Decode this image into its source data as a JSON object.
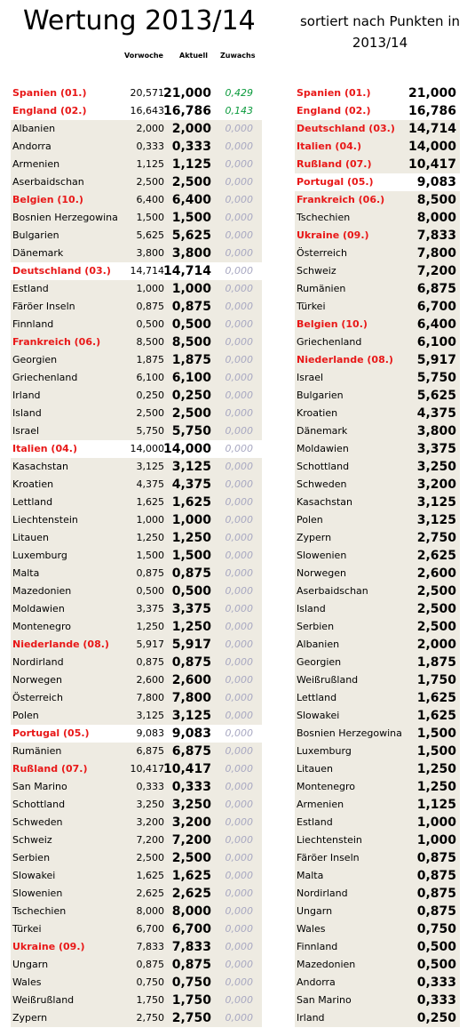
{
  "title": "Wertung 2013/14",
  "subtitle": "sortiert nach Punkten in\n2013/14",
  "headers": {
    "vorwoche": "Vorwoche",
    "aktuell": "Aktuell",
    "zuwachs": "Zuwachs"
  },
  "left_rows": [
    {
      "name": "Spanien (01.)",
      "prev": "20,571",
      "cur": "21,000",
      "gain": "0,429",
      "hl": true,
      "white": true,
      "pos": true
    },
    {
      "name": "England (02.)",
      "prev": "16,643",
      "cur": "16,786",
      "gain": "0,143",
      "hl": true,
      "white": true,
      "pos": true
    },
    {
      "name": "Albanien",
      "prev": "2,000",
      "cur": "2,000",
      "gain": "0,000"
    },
    {
      "name": "Andorra",
      "prev": "0,333",
      "cur": "0,333",
      "gain": "0,000"
    },
    {
      "name": "Armenien",
      "prev": "1,125",
      "cur": "1,125",
      "gain": "0,000"
    },
    {
      "name": "Aserbaidschan",
      "prev": "2,500",
      "cur": "2,500",
      "gain": "0,000"
    },
    {
      "name": "Belgien (10.)",
      "prev": "6,400",
      "cur": "6,400",
      "gain": "0,000",
      "hl": true
    },
    {
      "name": "Bosnien Herzegowina",
      "prev": "1,500",
      "cur": "1,500",
      "gain": "0,000"
    },
    {
      "name": "Bulgarien",
      "prev": "5,625",
      "cur": "5,625",
      "gain": "0,000"
    },
    {
      "name": "Dänemark",
      "prev": "3,800",
      "cur": "3,800",
      "gain": "0,000"
    },
    {
      "name": "Deutschland (03.)",
      "prev": "14,714",
      "cur": "14,714",
      "gain": "0,000",
      "hl": true,
      "white": true
    },
    {
      "name": "Estland",
      "prev": "1,000",
      "cur": "1,000",
      "gain": "0,000"
    },
    {
      "name": "Färöer Inseln",
      "prev": "0,875",
      "cur": "0,875",
      "gain": "0,000"
    },
    {
      "name": "Finnland",
      "prev": "0,500",
      "cur": "0,500",
      "gain": "0,000"
    },
    {
      "name": "Frankreich (06.)",
      "prev": "8,500",
      "cur": "8,500",
      "gain": "0,000",
      "hl": true
    },
    {
      "name": "Georgien",
      "prev": "1,875",
      "cur": "1,875",
      "gain": "0,000"
    },
    {
      "name": "Griechenland",
      "prev": "6,100",
      "cur": "6,100",
      "gain": "0,000"
    },
    {
      "name": "Irland",
      "prev": "0,250",
      "cur": "0,250",
      "gain": "0,000"
    },
    {
      "name": "Island",
      "prev": "2,500",
      "cur": "2,500",
      "gain": "0,000"
    },
    {
      "name": "Israel",
      "prev": "5,750",
      "cur": "5,750",
      "gain": "0,000"
    },
    {
      "name": "Italien (04.)",
      "prev": "14,000",
      "cur": "14,000",
      "gain": "0,000",
      "hl": true,
      "white": true
    },
    {
      "name": "Kasachstan",
      "prev": "3,125",
      "cur": "3,125",
      "gain": "0,000"
    },
    {
      "name": "Kroatien",
      "prev": "4,375",
      "cur": "4,375",
      "gain": "0,000"
    },
    {
      "name": "Lettland",
      "prev": "1,625",
      "cur": "1,625",
      "gain": "0,000"
    },
    {
      "name": "Liechtenstein",
      "prev": "1,000",
      "cur": "1,000",
      "gain": "0,000"
    },
    {
      "name": "Litauen",
      "prev": "1,250",
      "cur": "1,250",
      "gain": "0,000"
    },
    {
      "name": "Luxemburg",
      "prev": "1,500",
      "cur": "1,500",
      "gain": "0,000"
    },
    {
      "name": "Malta",
      "prev": "0,875",
      "cur": "0,875",
      "gain": "0,000"
    },
    {
      "name": "Mazedonien",
      "prev": "0,500",
      "cur": "0,500",
      "gain": "0,000"
    },
    {
      "name": "Moldawien",
      "prev": "3,375",
      "cur": "3,375",
      "gain": "0,000"
    },
    {
      "name": "Montenegro",
      "prev": "1,250",
      "cur": "1,250",
      "gain": "0,000"
    },
    {
      "name": "Niederlande (08.)",
      "prev": "5,917",
      "cur": "5,917",
      "gain": "0,000",
      "hl": true
    },
    {
      "name": "Nordirland",
      "prev": "0,875",
      "cur": "0,875",
      "gain": "0,000"
    },
    {
      "name": "Norwegen",
      "prev": "2,600",
      "cur": "2,600",
      "gain": "0,000"
    },
    {
      "name": "Österreich",
      "prev": "7,800",
      "cur": "7,800",
      "gain": "0,000"
    },
    {
      "name": "Polen",
      "prev": "3,125",
      "cur": "3,125",
      "gain": "0,000"
    },
    {
      "name": "Portugal (05.)",
      "prev": "9,083",
      "cur": "9,083",
      "gain": "0,000",
      "hl": true,
      "white": true
    },
    {
      "name": "Rumänien",
      "prev": "6,875",
      "cur": "6,875",
      "gain": "0,000"
    },
    {
      "name": "Rußland (07.)",
      "prev": "10,417",
      "cur": "10,417",
      "gain": "0,000",
      "hl": true
    },
    {
      "name": "San Marino",
      "prev": "0,333",
      "cur": "0,333",
      "gain": "0,000"
    },
    {
      "name": "Schottland",
      "prev": "3,250",
      "cur": "3,250",
      "gain": "0,000"
    },
    {
      "name": "Schweden",
      "prev": "3,200",
      "cur": "3,200",
      "gain": "0,000"
    },
    {
      "name": "Schweiz",
      "prev": "7,200",
      "cur": "7,200",
      "gain": "0,000"
    },
    {
      "name": "Serbien",
      "prev": "2,500",
      "cur": "2,500",
      "gain": "0,000"
    },
    {
      "name": "Slowakei",
      "prev": "1,625",
      "cur": "1,625",
      "gain": "0,000"
    },
    {
      "name": "Slowenien",
      "prev": "2,625",
      "cur": "2,625",
      "gain": "0,000"
    },
    {
      "name": "Tschechien",
      "prev": "8,000",
      "cur": "8,000",
      "gain": "0,000"
    },
    {
      "name": "Türkei",
      "prev": "6,700",
      "cur": "6,700",
      "gain": "0,000"
    },
    {
      "name": "Ukraine (09.)",
      "prev": "7,833",
      "cur": "7,833",
      "gain": "0,000",
      "hl": true
    },
    {
      "name": "Ungarn",
      "prev": "0,875",
      "cur": "0,875",
      "gain": "0,000"
    },
    {
      "name": "Wales",
      "prev": "0,750",
      "cur": "0,750",
      "gain": "0,000"
    },
    {
      "name": "Weißrußland",
      "prev": "1,750",
      "cur": "1,750",
      "gain": "0,000"
    },
    {
      "name": "Zypern",
      "prev": "2,750",
      "cur": "2,750",
      "gain": "0,000"
    }
  ],
  "right_rows": [
    {
      "name": "Spanien (01.)",
      "cur": "21,000",
      "hl": true,
      "white": true
    },
    {
      "name": "England (02.)",
      "cur": "16,786",
      "hl": true,
      "white": true
    },
    {
      "name": "Deutschland (03.)",
      "cur": "14,714",
      "hl": true
    },
    {
      "name": "Italien (04.)",
      "cur": "14,000",
      "hl": true
    },
    {
      "name": "Rußland (07.)",
      "cur": "10,417",
      "hl": true
    },
    {
      "name": "Portugal (05.)",
      "cur": "9,083",
      "hl": true,
      "white": true
    },
    {
      "name": "Frankreich (06.)",
      "cur": "8,500",
      "hl": true
    },
    {
      "name": "Tschechien",
      "cur": "8,000"
    },
    {
      "name": "Ukraine (09.)",
      "cur": "7,833",
      "hl": true
    },
    {
      "name": "Österreich",
      "cur": "7,800"
    },
    {
      "name": "Schweiz",
      "cur": "7,200"
    },
    {
      "name": "Rumänien",
      "cur": "6,875"
    },
    {
      "name": "Türkei",
      "cur": "6,700"
    },
    {
      "name": "Belgien (10.)",
      "cur": "6,400",
      "hl": true
    },
    {
      "name": "Griechenland",
      "cur": "6,100"
    },
    {
      "name": "Niederlande (08.)",
      "cur": "5,917",
      "hl": true
    },
    {
      "name": "Israel",
      "cur": "5,750"
    },
    {
      "name": "Bulgarien",
      "cur": "5,625"
    },
    {
      "name": "Kroatien",
      "cur": "4,375"
    },
    {
      "name": "Dänemark",
      "cur": "3,800"
    },
    {
      "name": "Moldawien",
      "cur": "3,375"
    },
    {
      "name": "Schottland",
      "cur": "3,250"
    },
    {
      "name": "Schweden",
      "cur": "3,200"
    },
    {
      "name": "Kasachstan",
      "cur": "3,125"
    },
    {
      "name": "Polen",
      "cur": "3,125"
    },
    {
      "name": "Zypern",
      "cur": "2,750"
    },
    {
      "name": "Slowenien",
      "cur": "2,625"
    },
    {
      "name": "Norwegen",
      "cur": "2,600"
    },
    {
      "name": "Aserbaidschan",
      "cur": "2,500"
    },
    {
      "name": "Island",
      "cur": "2,500"
    },
    {
      "name": "Serbien",
      "cur": "2,500"
    },
    {
      "name": "Albanien",
      "cur": "2,000"
    },
    {
      "name": "Georgien",
      "cur": "1,875"
    },
    {
      "name": "Weißrußland",
      "cur": "1,750"
    },
    {
      "name": "Lettland",
      "cur": "1,625"
    },
    {
      "name": "Slowakei",
      "cur": "1,625"
    },
    {
      "name": "Bosnien Herzegowina",
      "cur": "1,500"
    },
    {
      "name": "Luxemburg",
      "cur": "1,500"
    },
    {
      "name": "Litauen",
      "cur": "1,250"
    },
    {
      "name": "Montenegro",
      "cur": "1,250"
    },
    {
      "name": "Armenien",
      "cur": "1,125"
    },
    {
      "name": "Estland",
      "cur": "1,000"
    },
    {
      "name": "Liechtenstein",
      "cur": "1,000"
    },
    {
      "name": "Färöer Inseln",
      "cur": "0,875"
    },
    {
      "name": "Malta",
      "cur": "0,875"
    },
    {
      "name": "Nordirland",
      "cur": "0,875"
    },
    {
      "name": "Ungarn",
      "cur": "0,875"
    },
    {
      "name": "Wales",
      "cur": "0,750"
    },
    {
      "name": "Finnland",
      "cur": "0,500"
    },
    {
      "name": "Mazedonien",
      "cur": "0,500"
    },
    {
      "name": "Andorra",
      "cur": "0,333"
    },
    {
      "name": "San Marino",
      "cur": "0,333"
    },
    {
      "name": "Irland",
      "cur": "0,250"
    }
  ]
}
